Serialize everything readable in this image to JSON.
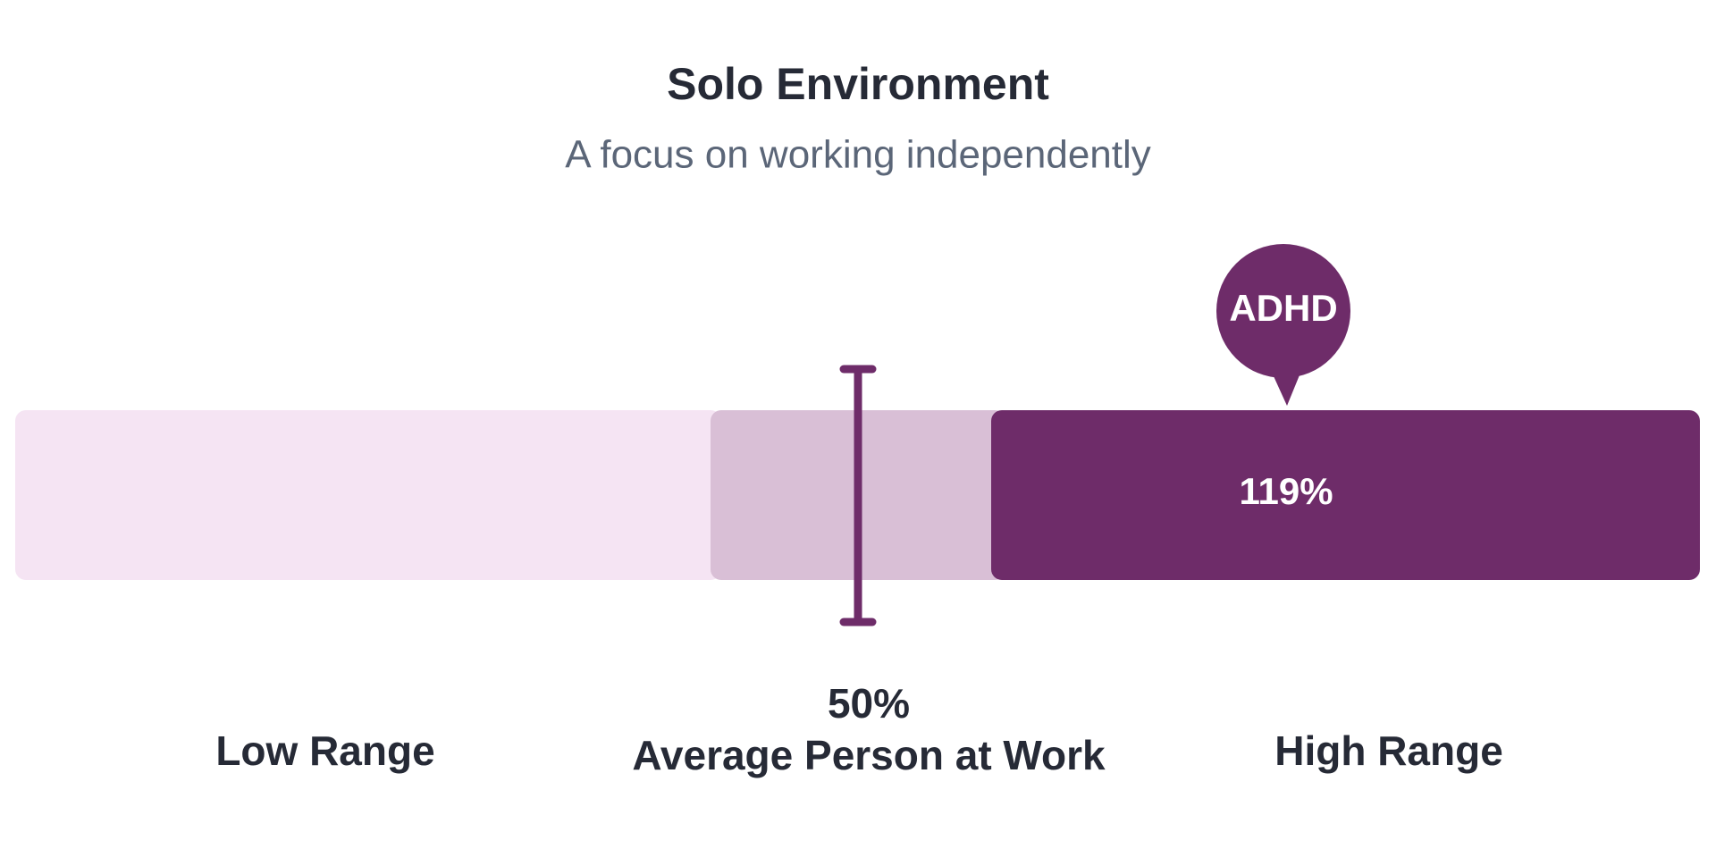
{
  "header": {
    "title": "Solo Environment",
    "subtitle": "A focus on working independently"
  },
  "gauge": {
    "marker_label": "ADHD",
    "marker_value": "119%",
    "average_value": "50%",
    "average_label": "Average Person at Work",
    "ranges": [
      "Low Range",
      "High Range"
    ]
  }
}
